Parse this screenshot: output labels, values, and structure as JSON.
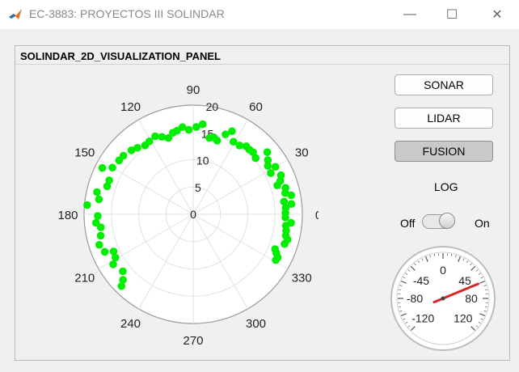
{
  "window": {
    "title": "EC-3883: PROYECTOS III SOLINDAR",
    "minimize_glyph": "—",
    "maximize_glyph": "☐",
    "close_glyph": "✕",
    "app_icon": "matlab-icon"
  },
  "panel": {
    "title": "SOLINDAR_2D_VISUALIZATION_PANEL"
  },
  "buttons": {
    "sonar": "SONAR",
    "lidar": "LIDAR",
    "fusion": "FUSION",
    "active": "FUSION"
  },
  "log": {
    "label": "LOG",
    "off_label": "Off",
    "on_label": "On",
    "state": "On"
  },
  "gauge": {
    "tick_labels": [
      "-120",
      "-80",
      "-45",
      "0",
      "45",
      "80",
      "120"
    ],
    "needle_value": 60,
    "needle_color": "#d62728"
  },
  "chart_data": {
    "type": "scatter",
    "coordinate_system": "polar",
    "marker_color": "#00ee00",
    "angle_tick_labels": [
      "0",
      "30",
      "60",
      "90",
      "120",
      "150",
      "180",
      "210",
      "240",
      "270",
      "300",
      "330"
    ],
    "radius_tick_labels": [
      "0",
      "5",
      "10",
      "15",
      "20"
    ],
    "rlim": [
      0,
      20
    ],
    "points": [
      {
        "theta": 331,
        "r": 17.3
      },
      {
        "theta": 333,
        "r": 17.4
      },
      {
        "theta": 335,
        "r": 16.8
      },
      {
        "theta": 337,
        "r": 16.3
      },
      {
        "theta": 342,
        "r": 17.6
      },
      {
        "theta": 345,
        "r": 17.9
      },
      {
        "theta": 347,
        "r": 17.4
      },
      {
        "theta": 350,
        "r": 17.3
      },
      {
        "theta": 353,
        "r": 17.1
      },
      {
        "theta": 355,
        "r": 18.0
      },
      {
        "theta": 358,
        "r": 16.9
      },
      {
        "theta": 1,
        "r": 16.9
      },
      {
        "theta": 4,
        "r": 17.0
      },
      {
        "theta": 6,
        "r": 18.1
      },
      {
        "theta": 8,
        "r": 16.8
      },
      {
        "theta": 11,
        "r": 18.3
      },
      {
        "theta": 13,
        "r": 17.3
      },
      {
        "theta": 16,
        "r": 17.6
      },
      {
        "theta": 19,
        "r": 16.3
      },
      {
        "theta": 21,
        "r": 17.1
      },
      {
        "theta": 24,
        "r": 17.6
      },
      {
        "theta": 28,
        "r": 16.1
      },
      {
        "theta": 30,
        "r": 17.4
      },
      {
        "theta": 33,
        "r": 16.3
      },
      {
        "theta": 36,
        "r": 16.9
      },
      {
        "theta": 40,
        "r": 17.7
      },
      {
        "theta": 42,
        "r": 15.4
      },
      {
        "theta": 46,
        "r": 15.8
      },
      {
        "theta": 49,
        "r": 15.7
      },
      {
        "theta": 52,
        "r": 15.8
      },
      {
        "theta": 56,
        "r": 15.2
      },
      {
        "theta": 61,
        "r": 15.2
      },
      {
        "theta": 65,
        "r": 16.8
      },
      {
        "theta": 68,
        "r": 15.8
      },
      {
        "theta": 72,
        "r": 14.2
      },
      {
        "theta": 75,
        "r": 14.6
      },
      {
        "theta": 78,
        "r": 14.3
      },
      {
        "theta": 84,
        "r": 16.6
      },
      {
        "theta": 88,
        "r": 16.0
      },
      {
        "theta": 93,
        "r": 15.5
      },
      {
        "theta": 97,
        "r": 16.1
      },
      {
        "theta": 101,
        "r": 15.6
      },
      {
        "theta": 104,
        "r": 15.4
      },
      {
        "theta": 108,
        "r": 14.7
      },
      {
        "theta": 112,
        "r": 15.3
      },
      {
        "theta": 116,
        "r": 15.9
      },
      {
        "theta": 121,
        "r": 15.6
      },
      {
        "theta": 125,
        "r": 15.4
      },
      {
        "theta": 130,
        "r": 15.9
      },
      {
        "theta": 134,
        "r": 16.3
      },
      {
        "theta": 140,
        "r": 16.7
      },
      {
        "theta": 144,
        "r": 16.8
      },
      {
        "theta": 150,
        "r": 17.1
      },
      {
        "theta": 153,
        "r": 18.7
      },
      {
        "theta": 158,
        "r": 16.6
      },
      {
        "theta": 162,
        "r": 16.6
      },
      {
        "theta": 167,
        "r": 18.1
      },
      {
        "theta": 171,
        "r": 17.5
      },
      {
        "theta": 175,
        "r": 19.5
      },
      {
        "theta": 181,
        "r": 17.5
      },
      {
        "theta": 185,
        "r": 17.9
      },
      {
        "theta": 188,
        "r": 17.1
      },
      {
        "theta": 193,
        "r": 17.4
      },
      {
        "theta": 198,
        "r": 18.1
      },
      {
        "theta": 203,
        "r": 17.6
      },
      {
        "theta": 205,
        "r": 16.1
      },
      {
        "theta": 209,
        "r": 16.3
      },
      {
        "theta": 212,
        "r": 17.3
      },
      {
        "theta": 219,
        "r": 16.6
      },
      {
        "theta": 223,
        "r": 17.6
      },
      {
        "theta": 225,
        "r": 18.6
      }
    ]
  }
}
